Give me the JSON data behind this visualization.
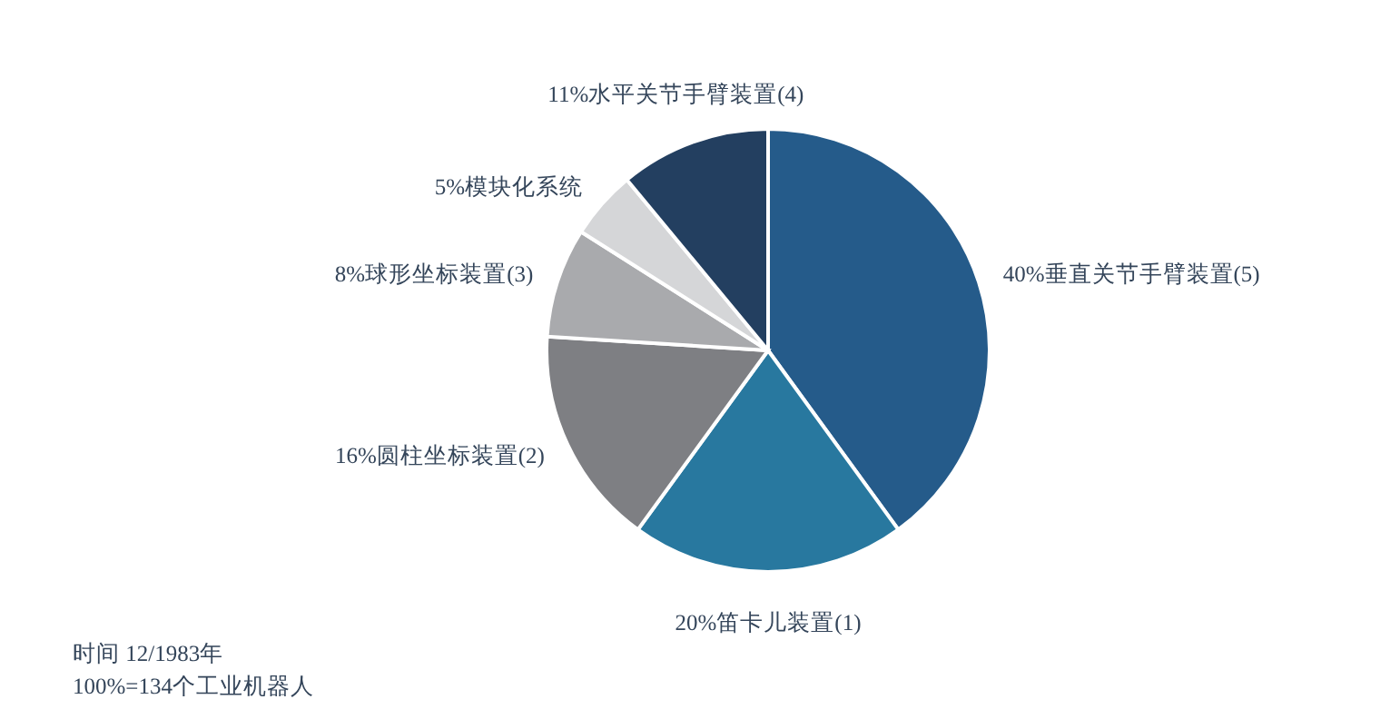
{
  "chart_data": {
    "type": "pie",
    "categories": [
      "40%垂直关节手臂装置(5)",
      "20%笛卡儿装置(1)",
      "16%圆柱坐标装置(2)",
      "8%球形坐标装置(3)",
      "5%模块化系统",
      "11%水平关节手臂装置(4)"
    ],
    "values": [
      40,
      20,
      16,
      8,
      5,
      11
    ],
    "colors": [
      "#255b8a",
      "#28789f",
      "#7e7f83",
      "#a9aaad",
      "#d5d6d8",
      "#233f60"
    ],
    "annotations": [
      "时间 12/1983年",
      "100%=134个工业机器人"
    ]
  }
}
